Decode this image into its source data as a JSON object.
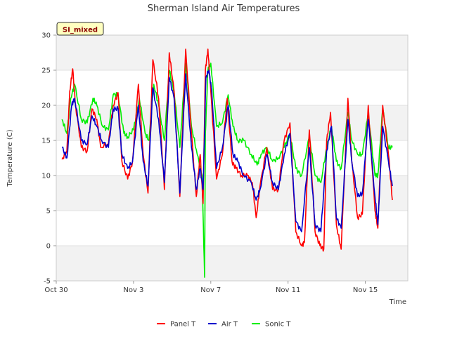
{
  "chart_data": {
    "type": "line",
    "title": "Sherman Island Air Temperatures",
    "xlabel": "Time",
    "ylabel": "Temperature (C)",
    "badge": "SI_mixed",
    "xlim": [
      0,
      18.2
    ],
    "ylim": [
      -5,
      30
    ],
    "yticks": [
      -5,
      0,
      5,
      10,
      15,
      20,
      25,
      30
    ],
    "xticks": [
      {
        "day": 0,
        "label": "Oct 30"
      },
      {
        "day": 4,
        "label": "Nov 3"
      },
      {
        "day": 8,
        "label": "Nov 7"
      },
      {
        "day": 12,
        "label": "Nov 11"
      },
      {
        "day": 16,
        "label": "Nov 15"
      }
    ],
    "grid": "horizontal bands",
    "legend_position": "bottom-center",
    "colors": {
      "Panel T": "#ff0000",
      "Air T": "#0000cc",
      "Sonic T": "#00ee00"
    },
    "series": [
      {
        "name": "Panel T",
        "points": [
          [
            0.3,
            12.3
          ],
          [
            0.55,
            13.5
          ],
          [
            0.7,
            22
          ],
          [
            0.85,
            25.2
          ],
          [
            1.0,
            20
          ],
          [
            1.3,
            14
          ],
          [
            1.6,
            13.5
          ],
          [
            1.85,
            19.5
          ],
          [
            2.1,
            18
          ],
          [
            2.3,
            14
          ],
          [
            2.7,
            14.5
          ],
          [
            2.95,
            20
          ],
          [
            3.2,
            21.8
          ],
          [
            3.4,
            12
          ],
          [
            3.7,
            9.5
          ],
          [
            3.95,
            12
          ],
          [
            4.25,
            23
          ],
          [
            4.5,
            13
          ],
          [
            4.75,
            7.5
          ],
          [
            5.0,
            26.5
          ],
          [
            5.3,
            21
          ],
          [
            5.6,
            8
          ],
          [
            5.85,
            27.5
          ],
          [
            6.1,
            22
          ],
          [
            6.4,
            7
          ],
          [
            6.7,
            28
          ],
          [
            7.0,
            16
          ],
          [
            7.25,
            7
          ],
          [
            7.45,
            13
          ],
          [
            7.6,
            6
          ],
          [
            7.72,
            25
          ],
          [
            7.85,
            28
          ],
          [
            8.0,
            22
          ],
          [
            8.3,
            9.5
          ],
          [
            8.6,
            13
          ],
          [
            8.85,
            21
          ],
          [
            9.1,
            12
          ],
          [
            9.3,
            11
          ],
          [
            9.6,
            10
          ],
          [
            9.9,
            10
          ],
          [
            10.15,
            9
          ],
          [
            10.35,
            4
          ],
          [
            10.55,
            8.5
          ],
          [
            10.9,
            14
          ],
          [
            11.2,
            8
          ],
          [
            11.5,
            8
          ],
          [
            11.8,
            15
          ],
          [
            12.1,
            17.5
          ],
          [
            12.4,
            2
          ],
          [
            12.7,
            0
          ],
          [
            12.85,
            0.5
          ],
          [
            13.1,
            16.5
          ],
          [
            13.4,
            2
          ],
          [
            13.65,
            0
          ],
          [
            13.85,
            -0.5
          ],
          [
            14.0,
            15
          ],
          [
            14.2,
            19
          ],
          [
            14.5,
            3
          ],
          [
            14.75,
            -0.5
          ],
          [
            15.1,
            21
          ],
          [
            15.3,
            12
          ],
          [
            15.6,
            4
          ],
          [
            15.85,
            4.5
          ],
          [
            16.15,
            20
          ],
          [
            16.5,
            5
          ],
          [
            16.65,
            2.5
          ],
          [
            16.9,
            20
          ],
          [
            17.2,
            13
          ],
          [
            17.4,
            6.5
          ]
        ]
      },
      {
        "name": "Air T",
        "points": [
          [
            0.3,
            14
          ],
          [
            0.55,
            12.5
          ],
          [
            0.8,
            20
          ],
          [
            0.95,
            21
          ],
          [
            1.3,
            15
          ],
          [
            1.6,
            14.5
          ],
          [
            1.85,
            18.5
          ],
          [
            2.1,
            17
          ],
          [
            2.35,
            15
          ],
          [
            2.7,
            14
          ],
          [
            2.95,
            19.5
          ],
          [
            3.2,
            19.5
          ],
          [
            3.4,
            13
          ],
          [
            3.7,
            11
          ],
          [
            3.95,
            12
          ],
          [
            4.25,
            20
          ],
          [
            4.5,
            12
          ],
          [
            4.75,
            8.5
          ],
          [
            5.0,
            22.5
          ],
          [
            5.3,
            18
          ],
          [
            5.6,
            9
          ],
          [
            5.85,
            24
          ],
          [
            6.1,
            21
          ],
          [
            6.4,
            7.5
          ],
          [
            6.7,
            24.5
          ],
          [
            7.0,
            14
          ],
          [
            7.25,
            8
          ],
          [
            7.45,
            11
          ],
          [
            7.6,
            8
          ],
          [
            7.75,
            24
          ],
          [
            7.9,
            25
          ],
          [
            8.05,
            22
          ],
          [
            8.3,
            11
          ],
          [
            8.6,
            14
          ],
          [
            8.9,
            20
          ],
          [
            9.15,
            13
          ],
          [
            9.4,
            12
          ],
          [
            9.7,
            10
          ],
          [
            10.1,
            9
          ],
          [
            10.35,
            6.5
          ],
          [
            10.55,
            8
          ],
          [
            10.9,
            13
          ],
          [
            11.2,
            9
          ],
          [
            11.5,
            8
          ],
          [
            11.8,
            13
          ],
          [
            12.1,
            16
          ],
          [
            12.4,
            3.5
          ],
          [
            12.7,
            2
          ],
          [
            13.1,
            14
          ],
          [
            13.4,
            3
          ],
          [
            13.7,
            2
          ],
          [
            14.0,
            13.5
          ],
          [
            14.25,
            17
          ],
          [
            14.5,
            4
          ],
          [
            14.75,
            2.5
          ],
          [
            15.1,
            18
          ],
          [
            15.3,
            12
          ],
          [
            15.6,
            7
          ],
          [
            15.85,
            7.5
          ],
          [
            16.15,
            18
          ],
          [
            16.5,
            7
          ],
          [
            16.65,
            3
          ],
          [
            16.9,
            17
          ],
          [
            17.2,
            12
          ],
          [
            17.4,
            8.5
          ]
        ]
      },
      {
        "name": "Sonic T",
        "points": [
          [
            0.3,
            18
          ],
          [
            0.55,
            16
          ],
          [
            0.75,
            21
          ],
          [
            0.95,
            23
          ],
          [
            1.3,
            18
          ],
          [
            1.6,
            17.5
          ],
          [
            1.9,
            21
          ],
          [
            2.1,
            20
          ],
          [
            2.4,
            17
          ],
          [
            2.7,
            16.5
          ],
          [
            2.95,
            21.5
          ],
          [
            3.2,
            21.5
          ],
          [
            3.5,
            16
          ],
          [
            3.7,
            15.5
          ],
          [
            4.0,
            16.5
          ],
          [
            4.3,
            21
          ],
          [
            4.6,
            16
          ],
          [
            4.8,
            15
          ],
          [
            5.05,
            23
          ],
          [
            5.3,
            20
          ],
          [
            5.6,
            15
          ],
          [
            5.85,
            25
          ],
          [
            6.1,
            22
          ],
          [
            6.4,
            14
          ],
          [
            6.7,
            26
          ],
          [
            7.0,
            17
          ],
          [
            7.3,
            13
          ],
          [
            7.55,
            10
          ],
          [
            7.68,
            -4.5
          ],
          [
            7.72,
            16
          ],
          [
            7.85,
            25
          ],
          [
            8.0,
            26
          ],
          [
            8.3,
            17
          ],
          [
            8.6,
            17.5
          ],
          [
            8.9,
            21.5
          ],
          [
            9.15,
            17
          ],
          [
            9.4,
            15
          ],
          [
            9.7,
            15
          ],
          [
            10.1,
            13
          ],
          [
            10.4,
            11.5
          ],
          [
            10.6,
            13
          ],
          [
            10.9,
            14
          ],
          [
            11.2,
            12
          ],
          [
            11.5,
            12.5
          ],
          [
            11.8,
            14
          ],
          [
            12.1,
            16
          ],
          [
            12.4,
            11
          ],
          [
            12.7,
            10
          ],
          [
            13.1,
            15.5
          ],
          [
            13.4,
            10
          ],
          [
            13.7,
            9
          ],
          [
            14.0,
            14
          ],
          [
            14.25,
            17
          ],
          [
            14.5,
            12
          ],
          [
            14.75,
            11
          ],
          [
            15.1,
            19
          ],
          [
            15.3,
            15
          ],
          [
            15.6,
            13
          ],
          [
            15.85,
            13
          ],
          [
            16.15,
            19
          ],
          [
            16.5,
            10
          ],
          [
            16.65,
            10
          ],
          [
            16.9,
            19.5
          ],
          [
            17.2,
            14
          ],
          [
            17.4,
            14
          ]
        ]
      }
    ]
  }
}
